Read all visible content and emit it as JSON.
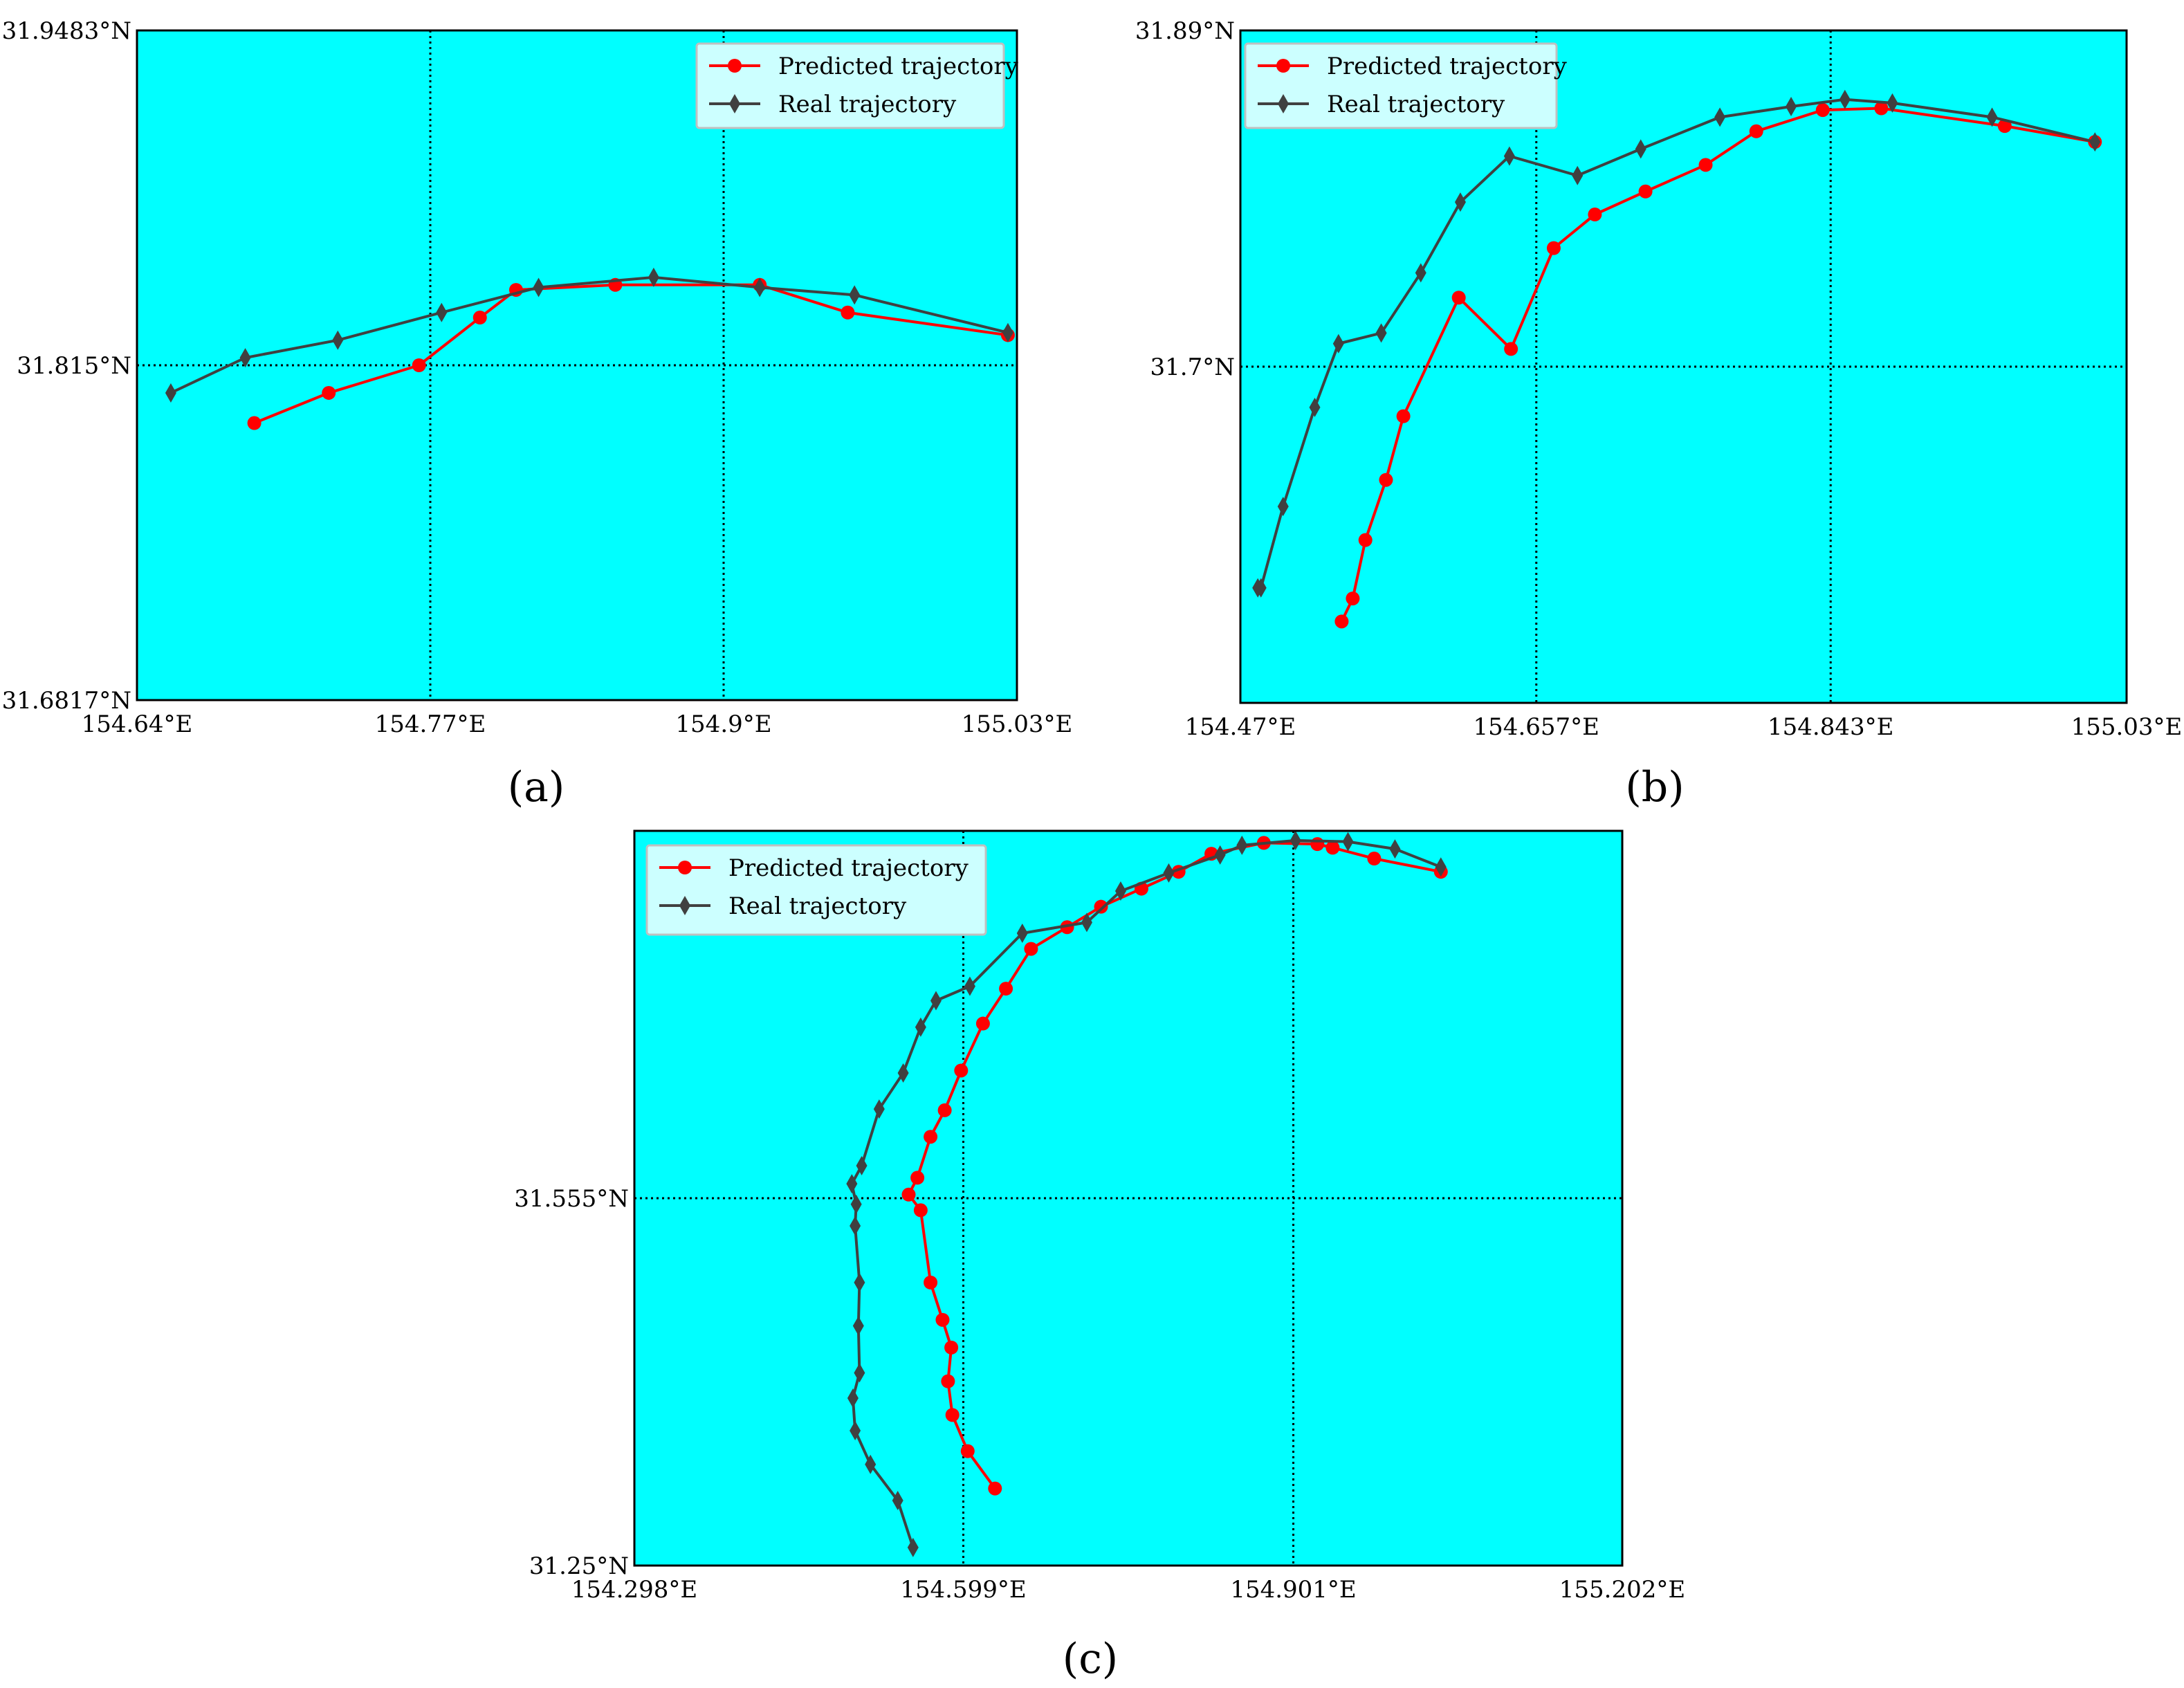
{
  "chart_data": [
    {
      "panel_label": "(a)",
      "type": "line",
      "xlim": [
        154.64,
        155.03
      ],
      "ylim": [
        31.6817,
        31.9483
      ],
      "x_ticks": [
        154.64,
        154.77,
        154.9,
        155.03
      ],
      "x_tick_labels": [
        "154.64°E",
        "154.77°E",
        "154.9°E",
        "155.03°E"
      ],
      "y_ticks": [
        31.6817,
        31.815,
        31.9483
      ],
      "y_tick_labels": [
        "31.6817°N",
        "31.815°N",
        "31.9483°N"
      ],
      "grid": "dotted, at interior ticks",
      "legend_position": "top-right",
      "series": [
        {
          "name": "Predicted trajectory",
          "color": "#ff0000",
          "marker": "circle",
          "points": [
            [
              154.692,
              31.792
            ],
            [
              154.725,
              31.804
            ],
            [
              154.765,
              31.815
            ],
            [
              154.792,
              31.834
            ],
            [
              154.808,
              31.845
            ],
            [
              154.852,
              31.847
            ],
            [
              154.916,
              31.847
            ],
            [
              154.955,
              31.836
            ],
            [
              155.026,
              31.827
            ]
          ]
        },
        {
          "name": "Real trajectory",
          "color": "#404040",
          "marker": "diamond",
          "points": [
            [
              154.655,
              31.804
            ],
            [
              154.688,
              31.818
            ],
            [
              154.729,
              31.825
            ],
            [
              154.775,
              31.836
            ],
            [
              154.818,
              31.846
            ],
            [
              154.869,
              31.85
            ],
            [
              154.916,
              31.846
            ],
            [
              154.958,
              31.843
            ],
            [
              155.026,
              31.828
            ]
          ]
        }
      ]
    },
    {
      "panel_label": "(b)",
      "type": "line",
      "xlim": [
        154.47,
        155.03
      ],
      "ylim": [
        31.51,
        31.89
      ],
      "x_ticks": [
        154.47,
        154.657,
        154.843,
        155.03
      ],
      "x_tick_labels": [
        "154.47°E",
        "154.657°E",
        "154.843°E",
        "155.03°E"
      ],
      "y_ticks": [
        31.7,
        31.89
      ],
      "y_tick_labels": [
        "31.7°N",
        "31.89°N"
      ],
      "grid": "dotted, at interior ticks",
      "legend_position": "top-left",
      "series": [
        {
          "name": "Predicted trajectory",
          "color": "#ff0000",
          "marker": "circle",
          "points": [
            [
              154.534,
              31.556
            ],
            [
              154.541,
              31.569
            ],
            [
              154.549,
              31.602
            ],
            [
              154.562,
              31.636
            ],
            [
              154.573,
              31.672
            ],
            [
              154.608,
              31.739
            ],
            [
              154.641,
              31.71
            ],
            [
              154.668,
              31.767
            ],
            [
              154.694,
              31.786
            ],
            [
              154.726,
              31.799
            ],
            [
              154.764,
              31.814
            ],
            [
              154.796,
              31.833
            ],
            [
              154.838,
              31.845
            ],
            [
              154.875,
              31.846
            ],
            [
              154.953,
              31.836
            ],
            [
              155.01,
              31.827
            ]
          ]
        },
        {
          "name": "Real trajectory",
          "color": "#404040",
          "marker": "diamond",
          "points": [
            [
              154.481,
              31.575
            ],
            [
              154.483,
              31.575
            ],
            [
              154.497,
              31.621
            ],
            [
              154.517,
              31.677
            ],
            [
              154.532,
              31.713
            ],
            [
              154.559,
              31.719
            ],
            [
              154.584,
              31.753
            ],
            [
              154.609,
              31.793
            ],
            [
              154.64,
              31.819
            ],
            [
              154.683,
              31.808
            ],
            [
              154.723,
              31.823
            ],
            [
              154.773,
              31.841
            ],
            [
              154.818,
              31.847
            ],
            [
              154.852,
              31.851
            ],
            [
              154.882,
              31.849
            ],
            [
              154.945,
              31.841
            ],
            [
              155.01,
              31.827
            ]
          ]
        }
      ]
    },
    {
      "panel_label": "(c)",
      "type": "line",
      "xlim": [
        154.298,
        155.202
      ],
      "ylim": [
        31.25,
        31.86
      ],
      "x_ticks": [
        154.298,
        154.599,
        154.901,
        155.202
      ],
      "x_tick_labels": [
        "154.298°E",
        "154.599°E",
        "154.901°E",
        "155.202°E"
      ],
      "y_ticks": [
        31.25,
        31.555
      ],
      "y_tick_labels": [
        "31.25°N",
        "31.555°N"
      ],
      "grid": "dotted, at interior ticks",
      "legend_position": "top-left",
      "series": [
        {
          "name": "Predicted trajectory",
          "color": "#ff0000",
          "marker": "circle",
          "points": [
            [
              154.628,
              31.314
            ],
            [
              154.603,
              31.345
            ],
            [
              154.589,
              31.375
            ],
            [
              154.585,
              31.403
            ],
            [
              154.588,
              31.431
            ],
            [
              154.58,
              31.454
            ],
            [
              154.569,
              31.485
            ],
            [
              154.56,
              31.545
            ],
            [
              154.549,
              31.558
            ],
            [
              154.557,
              31.572
            ],
            [
              154.569,
              31.606
            ],
            [
              154.582,
              31.628
            ],
            [
              154.597,
              31.661
            ],
            [
              154.617,
              31.7
            ],
            [
              154.638,
              31.729
            ],
            [
              154.661,
              31.762
            ],
            [
              154.694,
              31.78
            ],
            [
              154.725,
              31.797
            ],
            [
              154.762,
              31.812
            ],
            [
              154.796,
              31.826
            ],
            [
              154.826,
              31.841
            ],
            [
              154.874,
              31.85
            ],
            [
              154.923,
              31.849
            ],
            [
              154.937,
              31.846
            ],
            [
              154.975,
              31.837
            ],
            [
              155.036,
              31.826
            ]
          ]
        },
        {
          "name": "Real trajectory",
          "color": "#404040",
          "marker": "diamond",
          "points": [
            [
              154.553,
              31.265
            ],
            [
              154.539,
              31.304
            ],
            [
              154.514,
              31.334
            ],
            [
              154.5,
              31.362
            ],
            [
              154.498,
              31.389
            ],
            [
              154.504,
              31.41
            ],
            [
              154.503,
              31.449
            ],
            [
              154.504,
              31.485
            ],
            [
              154.5,
              31.532
            ],
            [
              154.501,
              31.55
            ],
            [
              154.497,
              31.567
            ],
            [
              154.506,
              31.582
            ],
            [
              154.522,
              31.629
            ],
            [
              154.544,
              31.659
            ],
            [
              154.56,
              31.697
            ],
            [
              154.574,
              31.719
            ],
            [
              154.605,
              31.731
            ],
            [
              154.653,
              31.775
            ],
            [
              154.712,
              31.784
            ],
            [
              154.743,
              31.81
            ],
            [
              154.787,
              31.825
            ],
            [
              154.834,
              31.84
            ],
            [
              154.854,
              31.848
            ],
            [
              154.903,
              31.852
            ],
            [
              154.951,
              31.851
            ],
            [
              154.994,
              31.845
            ],
            [
              155.036,
              31.83
            ]
          ]
        }
      ]
    }
  ]
}
